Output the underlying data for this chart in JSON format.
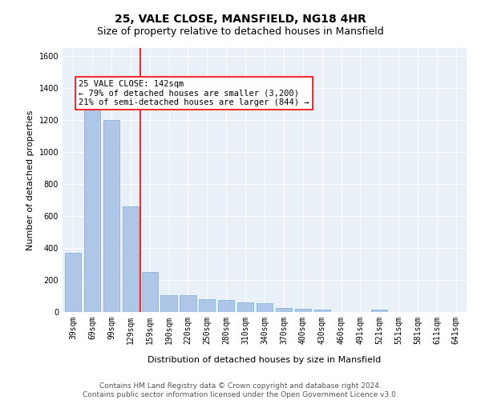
{
  "title": "25, VALE CLOSE, MANSFIELD, NG18 4HR",
  "subtitle": "Size of property relative to detached houses in Mansfield",
  "xlabel": "Distribution of detached houses by size in Mansfield",
  "ylabel": "Number of detached properties",
  "footer_line1": "Contains HM Land Registry data © Crown copyright and database right 2024.",
  "footer_line2": "Contains public sector information licensed under the Open Government Licence v3.0.",
  "categories": [
    "39sqm",
    "69sqm",
    "99sqm",
    "129sqm",
    "159sqm",
    "190sqm",
    "220sqm",
    "250sqm",
    "280sqm",
    "310sqm",
    "340sqm",
    "370sqm",
    "400sqm",
    "430sqm",
    "460sqm",
    "491sqm",
    "521sqm",
    "551sqm",
    "581sqm",
    "611sqm",
    "641sqm"
  ],
  "values": [
    370,
    1270,
    1200,
    660,
    250,
    105,
    105,
    80,
    75,
    60,
    55,
    25,
    20,
    15,
    0,
    0,
    15,
    0,
    0,
    0,
    0
  ],
  "bar_color": "#aec6e8",
  "bar_edge_color": "#7aafd4",
  "ylim": [
    0,
    1650
  ],
  "yticks": [
    0,
    200,
    400,
    600,
    800,
    1000,
    1200,
    1400,
    1600
  ],
  "property_label": "25 VALE CLOSE: 142sqm",
  "annotation_line1": "← 79% of detached houses are smaller (3,200)",
  "annotation_line2": "21% of semi-detached houses are larger (844) →",
  "vline_x_index": 3.5,
  "background_color": "#eaf0f8",
  "grid_color": "#ffffff",
  "title_fontsize": 10,
  "subtitle_fontsize": 9,
  "axis_label_fontsize": 8,
  "tick_fontsize": 7,
  "annotation_fontsize": 7.5,
  "footer_fontsize": 6.5
}
